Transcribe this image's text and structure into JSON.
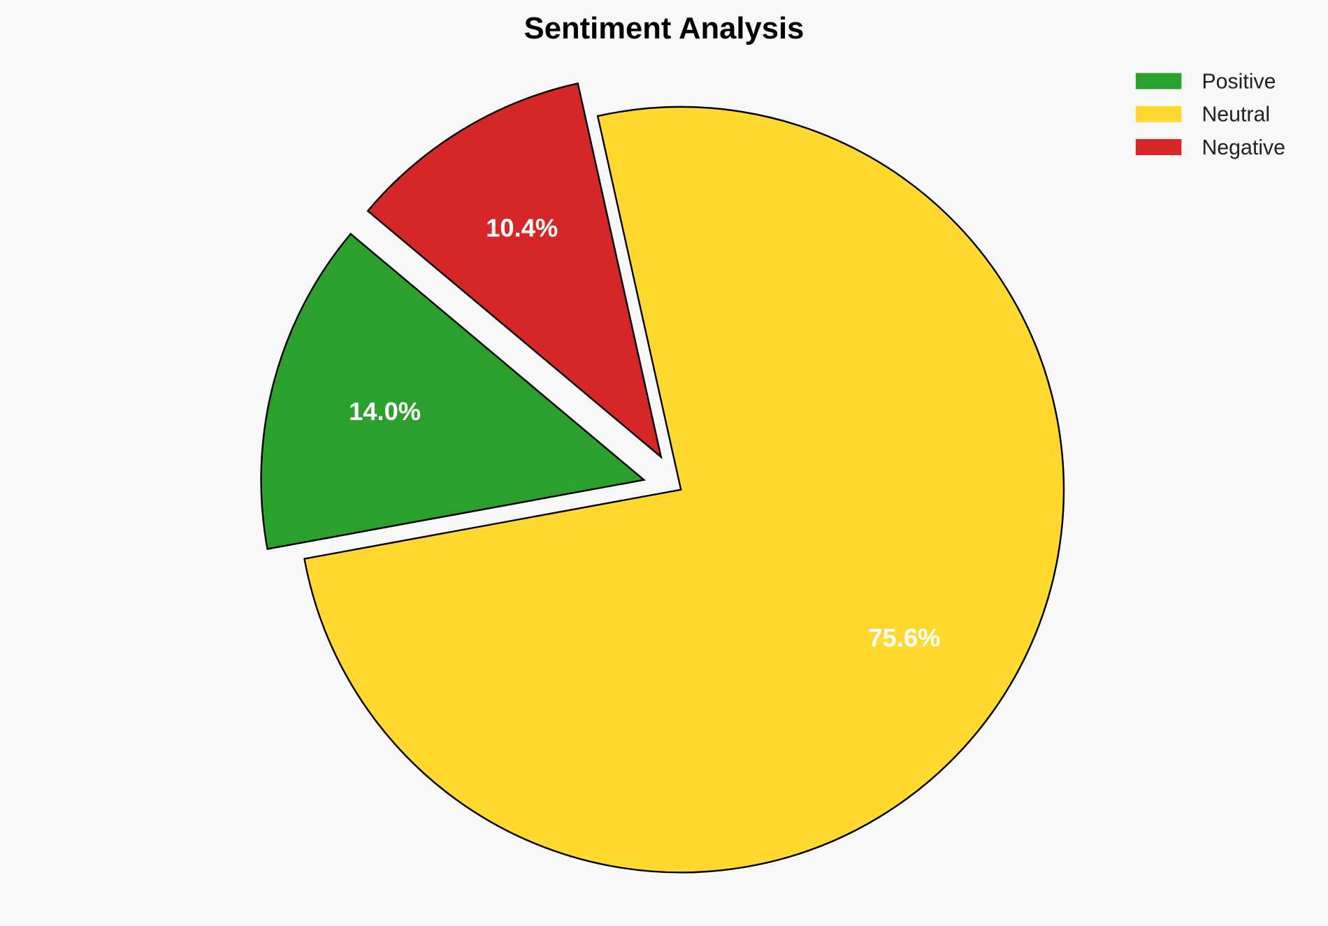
{
  "chart_data": {
    "type": "pie",
    "title": "Sentiment Analysis",
    "categories": [
      "Positive",
      "Neutral",
      "Negative"
    ],
    "values": [
      14.0,
      75.6,
      10.4
    ],
    "labels": [
      "14.0%",
      "75.6%",
      "10.4%"
    ],
    "colors": [
      "#2ca02c",
      "#ffd92f",
      "#d62728"
    ],
    "explode": [
      0.1,
      0,
      0.1
    ],
    "start_angle": 140,
    "legend_placement": "top-right"
  },
  "colors": {
    "background": "#f8f8f8",
    "edge": "#000000",
    "label_text": "#ffffff"
  }
}
